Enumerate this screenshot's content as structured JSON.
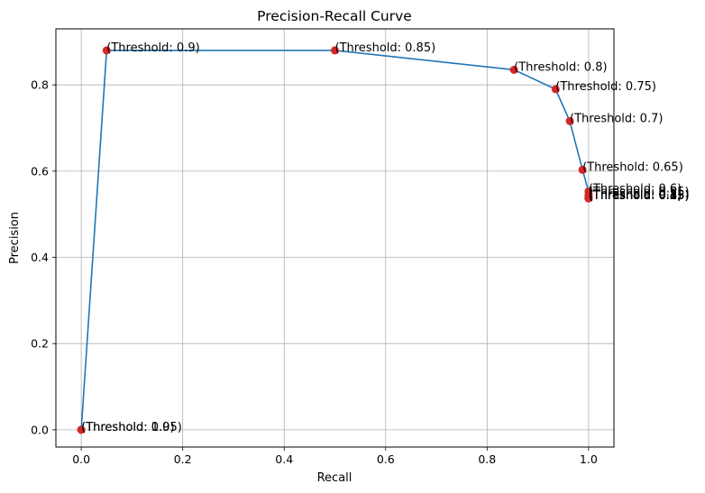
{
  "chart_data": {
    "type": "line",
    "title": "Precision-Recall Curve",
    "xlabel": "Recall",
    "ylabel": "Precision",
    "xlim": [
      -0.05,
      1.05
    ],
    "ylim": [
      -0.04,
      0.93
    ],
    "xticks": [
      "0.0",
      "0.2",
      "0.4",
      "0.6",
      "0.8",
      "1.0"
    ],
    "yticks": [
      "0.0",
      "0.2",
      "0.4",
      "0.6",
      "0.8"
    ],
    "grid": true,
    "line_color": "#1f77b4",
    "marker_color": "#d62728",
    "points": [
      {
        "x": 0.0,
        "y": 0.0,
        "label": "(Threshold: 1.0)"
      },
      {
        "x": 0.0,
        "y": 0.0,
        "label": "(Threshold: 0.95)"
      },
      {
        "x": 0.05,
        "y": 0.88,
        "label": "(Threshold: 0.9)"
      },
      {
        "x": 0.5,
        "y": 0.88,
        "label": "(Threshold: 0.85)"
      },
      {
        "x": 0.853,
        "y": 0.835,
        "label": "(Threshold: 0.8)"
      },
      {
        "x": 0.935,
        "y": 0.79,
        "label": "(Threshold: 0.75)"
      },
      {
        "x": 0.963,
        "y": 0.716,
        "label": "(Threshold: 0.7)"
      },
      {
        "x": 0.988,
        "y": 0.603,
        "label": "(Threshold: 0.65)"
      },
      {
        "x": 1.0,
        "y": 0.553,
        "label": "(Threshold: 0.6)"
      },
      {
        "x": 1.0,
        "y": 0.545,
        "label": "(Threshold: 0.55)"
      },
      {
        "x": 1.0,
        "y": 0.54,
        "label": "(Threshold: 0.5)"
      },
      {
        "x": 1.0,
        "y": 0.537,
        "label": "(Threshold: 0.45)"
      },
      {
        "x": 1.0,
        "y": 0.537,
        "label": "(Threshold: 0.4)"
      },
      {
        "x": 1.0,
        "y": 0.537,
        "label": "(Threshold: 0.35)"
      },
      {
        "x": 1.0,
        "y": 0.537,
        "label": "(Threshold: 0.3)"
      },
      {
        "x": 1.0,
        "y": 0.537,
        "label": "(Threshold: 0.25)"
      },
      {
        "x": 1.0,
        "y": 0.537,
        "label": "(Threshold: 0.2)"
      },
      {
        "x": 1.0,
        "y": 0.537,
        "label": "(Threshold: 0.15)"
      },
      {
        "x": 1.0,
        "y": 0.537,
        "label": "(Threshold: 0.1)"
      }
    ]
  }
}
